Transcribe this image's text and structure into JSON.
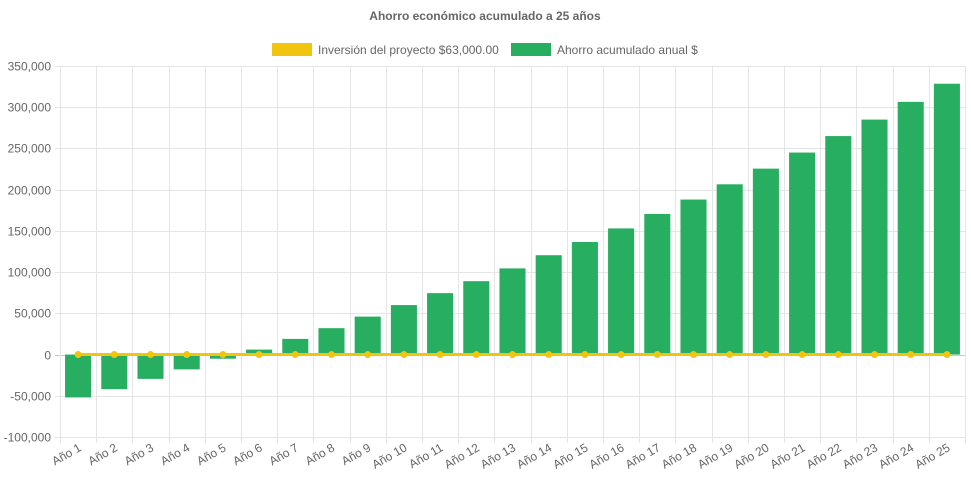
{
  "chart_data": {
    "type": "bar",
    "title": "Ahorro económico acumulado a 25 años",
    "legend_position": "top",
    "grid": true,
    "categories": [
      "Año 1",
      "Año 2",
      "Año 3",
      "Año 4",
      "Año 5",
      "Año 6",
      "Año 7",
      "Año 8",
      "Año 9",
      "Año 10",
      "Año 11",
      "Año 12",
      "Año 13",
      "Año 14",
      "Año 15",
      "Año 16",
      "Año 17",
      "Año 18",
      "Año 19",
      "Año 20",
      "Año 21",
      "Año 22",
      "Año 23",
      "Año 24",
      "Año 25"
    ],
    "y_ticks": [
      "350,000",
      "300,000",
      "250,000",
      "200,000",
      "150,000",
      "100,000",
      "50,000",
      "0",
      "-50,000",
      "-100,000"
    ],
    "ylim": [
      -100000,
      350000
    ],
    "series": [
      {
        "name": "Inversión del proyecto $63,000.00",
        "type": "line",
        "color": "#f1c40f",
        "values": [
          0,
          0,
          0,
          0,
          0,
          0,
          0,
          0,
          0,
          0,
          0,
          0,
          0,
          0,
          0,
          0,
          0,
          0,
          0,
          0,
          0,
          0,
          0,
          0,
          0
        ]
      },
      {
        "name": "Ahorro acumulado anual $",
        "type": "bar",
        "color": "#27ae60",
        "values": [
          -52000,
          -42000,
          -29500,
          -18000,
          -5000,
          6000,
          19000,
          32000,
          46000,
          60000,
          74500,
          89000,
          104500,
          120500,
          136500,
          153000,
          170500,
          188000,
          206500,
          225500,
          245000,
          265000,
          285000,
          306500,
          328500
        ]
      }
    ]
  }
}
